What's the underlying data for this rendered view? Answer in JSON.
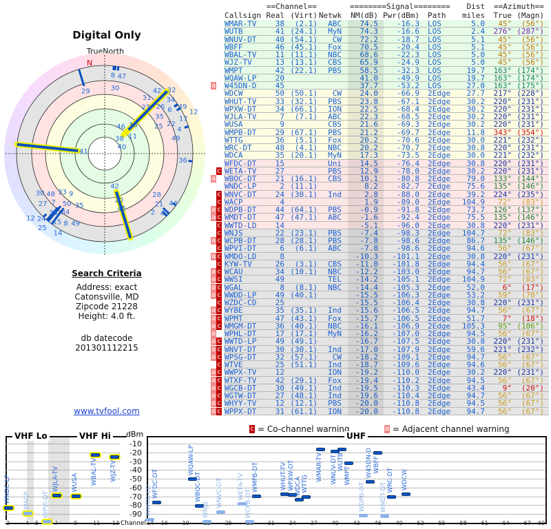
{
  "polar": {
    "title": "Digital Only",
    "north_label": "TrueNorth",
    "n_marker": "N"
  },
  "search": {
    "heading": "Search Criteria",
    "address": "Address: exact",
    "city": "Catonsville, MD",
    "zipcode": "Zipcode 21228",
    "height": "Height: 4.0 ft.",
    "db_label": "db datecode",
    "db_value": "201301112215"
  },
  "link": "www.tvfool.com",
  "table": {
    "group_channel": "==Channel==",
    "group_signal": "========Signal========",
    "group_dist": "Dist",
    "group_azimuth": "==Azimuth==",
    "columns": [
      "Callsign",
      "Real",
      "(Virt)",
      "Netwk",
      "NM(dB)",
      "Pwr(dBm)",
      "Path",
      "miles",
      "True",
      "(Magn)"
    ]
  },
  "colors": {
    "green_zone": "#e6fbe6",
    "yellow_zone": "#fdfde4",
    "pink_zone": "#fde6e6",
    "gray_zone": "#e4e4e4",
    "text": "#1a5fd0",
    "co_channel": "#c00000",
    "adjacent": "#f08a8a"
  },
  "rows": [
    {
      "call": "WMAR-TV",
      "real": "38",
      "virt": "(2.1)",
      "net": "ABC",
      "nm": "74.5",
      "pwr": "-16.3",
      "path": "LOS",
      "dist": "5.0",
      "az": "45°",
      "mag": "(56°)",
      "flags": "",
      "zone": "green"
    },
    {
      "call": "WUTB",
      "real": "41",
      "virt": "(24.1)",
      "net": "MyN",
      "nm": "74.3",
      "pwr": "-16.6",
      "path": "LOS",
      "dist": "2.4",
      "az": "276°",
      "mag": "(287°)",
      "flags": "",
      "zone": "green"
    },
    {
      "call": "WNUV-DT",
      "real": "40",
      "virt": "(54.1)",
      "net": "CW",
      "nm": "72.2",
      "pwr": "-18.7",
      "path": "LOS",
      "dist": "5.1",
      "az": "45°",
      "mag": "(56°)",
      "flags": "",
      "zone": "green"
    },
    {
      "call": "WBFF",
      "real": "46",
      "virt": "(45.1)",
      "net": "Fox",
      "nm": "70.5",
      "pwr": "-20.4",
      "path": "LOS",
      "dist": "5.1",
      "az": "45°",
      "mag": "(56°)",
      "flags": "",
      "zone": "green"
    },
    {
      "call": "WBAL-TV",
      "real": "11",
      "virt": "(11.1)",
      "net": "NBC",
      "nm": "68.6",
      "pwr": "-22.3",
      "path": "LOS",
      "dist": "5.0",
      "az": "45°",
      "mag": "(56°)",
      "flags": "",
      "zone": "green"
    },
    {
      "call": "WJZ-TV",
      "real": "13",
      "virt": "(13.1)",
      "net": "CBS",
      "nm": "65.9",
      "pwr": "-24.9",
      "path": "LOS",
      "dist": "5.0",
      "az": "45°",
      "mag": "(56°)",
      "flags": "",
      "zone": "green"
    },
    {
      "call": "WMPT",
      "real": "42",
      "virt": "(22.1)",
      "net": "PBS",
      "nm": "58.5",
      "pwr": "-32.3",
      "path": "LOS",
      "dist": "19.7",
      "az": "163°",
      "mag": "(174°)",
      "flags": "",
      "zone": "green"
    },
    {
      "call": "WQAW-LP",
      "real": "20",
      "virt": "",
      "net": "",
      "nm": "41.0",
      "pwr": "-49.9",
      "path": "LOS",
      "dist": "19.7",
      "az": "163°",
      "mag": "(174°)",
      "flags": "",
      "zone": "green"
    },
    {
      "call": "W45DN-D",
      "real": "45",
      "virt": "",
      "net": "",
      "nm": "37.7",
      "pwr": "-53.2",
      "path": "LOS",
      "dist": "27.0",
      "az": "163°",
      "mag": "(175°)",
      "flags": "a",
      "zone": "green"
    },
    {
      "call": "WDCW",
      "real": "50",
      "virt": "(50.1)",
      "net": "CW",
      "nm": "24.0",
      "pwr": "-66.9",
      "path": "2Edge",
      "dist": "27.7",
      "az": "217°",
      "mag": "(228°)",
      "flags": "",
      "zone": "yellow"
    },
    {
      "call": "WHUT-TV",
      "real": "33",
      "virt": "(32.1)",
      "net": "PBS",
      "nm": "23.8",
      "pwr": "-67.1",
      "path": "2Edge",
      "dist": "30.2",
      "az": "220°",
      "mag": "(231°)",
      "flags": "",
      "zone": "yellow"
    },
    {
      "call": "WPXW-DT",
      "real": "34",
      "virt": "(66.1)",
      "net": "ION",
      "nm": "22.5",
      "pwr": "-68.4",
      "path": "2Edge",
      "dist": "30.2",
      "az": "220°",
      "mag": "(231°)",
      "flags": "",
      "zone": "yellow"
    },
    {
      "call": "WJLA-TV",
      "real": "7",
      "virt": "(7.1)",
      "net": "ABC",
      "nm": "22.3",
      "pwr": "-68.5",
      "path": "2Edge",
      "dist": "30.2",
      "az": "220°",
      "mag": "(231°)",
      "flags": "",
      "zone": "yellow"
    },
    {
      "call": "WUSA",
      "real": "9",
      "virt": "",
      "net": "CBS",
      "nm": "21.6",
      "pwr": "-69.3",
      "path": "2Edge",
      "dist": "30.2",
      "az": "220°",
      "mag": "(231°)",
      "flags": "",
      "zone": "yellow"
    },
    {
      "call": "WMPB-DT",
      "real": "29",
      "virt": "(67.1)",
      "net": "PBS",
      "nm": "21.2",
      "pwr": "-69.7",
      "path": "2Edge",
      "dist": "11.8",
      "az": "343°",
      "mag": "(354°)",
      "flags": "",
      "zone": "yellow"
    },
    {
      "call": "WTTG",
      "real": "36",
      "virt": "(5.1)",
      "net": "Fox",
      "nm": "20.2",
      "pwr": "-70.6",
      "path": "2Edge",
      "dist": "30.0",
      "az": "221°",
      "mag": "(232°)",
      "flags": "",
      "zone": "yellow"
    },
    {
      "call": "WRC-DT",
      "real": "48",
      "virt": "(4.1)",
      "net": "NBC",
      "nm": "20.2",
      "pwr": "-70.7",
      "path": "2Edge",
      "dist": "30.8",
      "az": "220°",
      "mag": "(231°)",
      "flags": "",
      "zone": "yellow"
    },
    {
      "call": "WDCA",
      "real": "35",
      "virt": "(20.1)",
      "net": "MyN",
      "nm": "17.3",
      "pwr": "-73.5",
      "path": "2Edge",
      "dist": "30.0",
      "az": "221°",
      "mag": "(232°)",
      "flags": "",
      "zone": "yellow"
    },
    {
      "call": "WFDC-DT",
      "real": "15",
      "virt": "",
      "net": "Uni",
      "nm": "14.5",
      "pwr": "-76.4",
      "path": "2Edge",
      "dist": "30.8",
      "az": "220°",
      "mag": "(231°)",
      "flags": "",
      "zone": "pink"
    },
    {
      "call": "WETA-TV",
      "real": "27",
      "virt": "",
      "net": "PBS",
      "nm": "12.9",
      "pwr": "-78.0",
      "path": "2Edge",
      "dist": "30.2",
      "az": "220°",
      "mag": "(231°)",
      "flags": "c",
      "zone": "pink"
    },
    {
      "call": "WBOC-DT",
      "real": "21",
      "virt": "(16.1)",
      "net": "CBS",
      "nm": "10.1",
      "pwr": "-80.8",
      "path": "2Edge",
      "dist": "79.0",
      "az": "133°",
      "mag": "(144°)",
      "flags": "a",
      "zone": "pink"
    },
    {
      "call": "WNDC-LP",
      "real": "2",
      "virt": "(11.1)",
      "net": "",
      "nm": "8.2",
      "pwr": "-82.7",
      "path": "2Edge",
      "dist": "75.6",
      "az": "135°",
      "mag": "(146°)",
      "flags": "",
      "zone": "pink"
    },
    {
      "call": "WNVC-DT",
      "real": "24",
      "virt": "(30.1)",
      "net": "Ind",
      "nm": "2.8",
      "pwr": "-88.0",
      "path": "2Edge",
      "dist": "39.2",
      "az": "224°",
      "mag": "(235°)",
      "flags": "c",
      "zone": "pink"
    },
    {
      "call": "WACP",
      "real": "4",
      "virt": "",
      "net": "",
      "nm": "1.9",
      "pwr": "-89.0",
      "path": "2Edge",
      "dist": "104.9",
      "az": "72°",
      "mag": "(83°)",
      "flags": "c",
      "zone": "pink"
    },
    {
      "call": "WDPB-DT",
      "real": "44",
      "virt": "(64.1)",
      "net": "PBS",
      "nm": "-0.9",
      "pwr": "-91.8",
      "path": "2Edge",
      "dist": "73.7",
      "az": "126°",
      "mag": "(137°)",
      "flags": "ac",
      "zone": "pink"
    },
    {
      "call": "WMDT-DT",
      "real": "47",
      "virt": "(47.1)",
      "net": "ABC",
      "nm": "-1.6",
      "pwr": "-92.4",
      "path": "2Edge",
      "dist": "75.5",
      "az": "135°",
      "mag": "(146°)",
      "flags": "ac",
      "zone": "pink"
    },
    {
      "call": "WWTD-LD",
      "real": "14",
      "virt": "",
      "net": "",
      "nm": "-5.1",
      "pwr": "-96.0",
      "path": "2Edge",
      "dist": "30.8",
      "az": "220°",
      "mag": "(231°)",
      "flags": "c",
      "zone": "pink"
    },
    {
      "call": "WNJS",
      "real": "22",
      "virt": "(23.1)",
      "net": "PBS",
      "nm": "-7.4",
      "pwr": "-98.3",
      "path": "2Edge",
      "dist": "104.7",
      "az": "72°",
      "mag": "(83°)",
      "flags": "c",
      "zone": "gray"
    },
    {
      "call": "WCPB-DT",
      "real": "28",
      "virt": "(28.1)",
      "net": "PBS",
      "nm": "-7.8",
      "pwr": "-98.6",
      "path": "2Edge",
      "dist": "86.7",
      "az": "135°",
      "mag": "(146°)",
      "flags": "ac",
      "zone": "gray"
    },
    {
      "call": "WPVI-DT",
      "real": "6",
      "virt": "(6.1)",
      "net": "ABC",
      "nm": "-7.8",
      "pwr": "-98.6",
      "path": "2Edge",
      "dist": "94.6",
      "az": "56°",
      "mag": "(67°)",
      "flags": "c",
      "zone": "gray"
    },
    {
      "call": "WMDO-LD",
      "real": "8",
      "virt": "",
      "net": "",
      "nm": "-10.3",
      "pwr": "-101.1",
      "path": "2Edge",
      "dist": "30.8",
      "az": "220°",
      "mag": "(231°)",
      "flags": "ac",
      "zone": "gray"
    },
    {
      "call": "KYW-TV",
      "real": "26",
      "virt": "(3.1)",
      "net": "CBS",
      "nm": "-11.0",
      "pwr": "-101.8",
      "path": "2Edge",
      "dist": "94.4",
      "az": "56°",
      "mag": "(67°)",
      "flags": "c",
      "zone": "gray"
    },
    {
      "call": "WCAU",
      "real": "34",
      "virt": "(10.1)",
      "net": "NBC",
      "nm": "-12.2",
      "pwr": "-103.0",
      "path": "2Edge",
      "dist": "94.7",
      "az": "56°",
      "mag": "(67°)",
      "flags": "ac",
      "zone": "gray"
    },
    {
      "call": "WWSI",
      "real": "49",
      "virt": "",
      "net": "TEL",
      "nm": "-14.2",
      "pwr": "-105.1",
      "path": "2Edge",
      "dist": "104.9",
      "az": "72°",
      "mag": "(83°)",
      "flags": "ac",
      "zone": "gray"
    },
    {
      "call": "WGAL",
      "real": "8",
      "virt": "(8.1)",
      "net": "NBC",
      "nm": "-14.4",
      "pwr": "-105.3",
      "path": "2Edge",
      "dist": "52.0",
      "az": "6°",
      "mag": "(17°)",
      "flags": "ac",
      "zone": "gray"
    },
    {
      "call": "WWDD-LP",
      "real": "49",
      "virt": "(40.1)",
      "net": "",
      "nm": "-15.5",
      "pwr": "-106.3",
      "path": "2Edge",
      "dist": "53.2",
      "az": "59°",
      "mag": "(70°)",
      "flags": "ac",
      "zone": "gray"
    },
    {
      "call": "WZDC-CD",
      "real": "25",
      "virt": "",
      "net": "",
      "nm": "-15.5",
      "pwr": "-106.4",
      "path": "2Edge",
      "dist": "30.8",
      "az": "220°",
      "mag": "(231°)",
      "flags": "c",
      "zone": "gray"
    },
    {
      "call": "WYBE",
      "real": "35",
      "virt": "(35.1)",
      "net": "Ind",
      "nm": "-15.6",
      "pwr": "-106.5",
      "path": "2Edge",
      "dist": "94.7",
      "az": "56°",
      "mag": "(67°)",
      "flags": "ac",
      "zone": "gray"
    },
    {
      "call": "WPMT",
      "real": "47",
      "virt": "(43.1)",
      "net": "Fox",
      "nm": "-15.7",
      "pwr": "-106.5",
      "path": "2Edge",
      "dist": "51.7",
      "az": "7°",
      "mag": "(18°)",
      "flags": "ac",
      "zone": "gray"
    },
    {
      "call": "WMGM-DT",
      "real": "36",
      "virt": "(40.1)",
      "net": "NBC",
      "nm": "-16.1",
      "pwr": "-106.9",
      "path": "2Edge",
      "dist": "105.3",
      "az": "95°",
      "mag": "(106°)",
      "flags": "ac",
      "zone": "gray"
    },
    {
      "call": "WPHL-DT",
      "real": "17",
      "virt": "(17.1)",
      "net": "MyN",
      "nm": "-16.2",
      "pwr": "-107.0",
      "path": "2Edge",
      "dist": "94.5",
      "az": "56°",
      "mag": "(67°)",
      "flags": "a",
      "zone": "gray"
    },
    {
      "call": "WWTD-LP",
      "real": "49",
      "virt": "(49.1)",
      "net": "",
      "nm": "-16.7",
      "pwr": "-107.5",
      "path": "2Edge",
      "dist": "30.8",
      "az": "220°",
      "mag": "(231°)",
      "flags": "ac",
      "zone": "gray"
    },
    {
      "call": "WNVT-DT",
      "real": "30",
      "virt": "(30.1)",
      "net": "Ind",
      "nm": "-17.0",
      "pwr": "-107.9",
      "path": "2Edge",
      "dist": "59.6",
      "az": "221°",
      "mag": "(232°)",
      "flags": "ac",
      "zone": "gray"
    },
    {
      "call": "WPSG-DT",
      "real": "32",
      "virt": "(57.1)",
      "net": "CW",
      "nm": "-18.2",
      "pwr": "-109.1",
      "path": "2Edge",
      "dist": "94.7",
      "az": "56°",
      "mag": "(67°)",
      "flags": "ac",
      "zone": "gray"
    },
    {
      "call": "WTVE",
      "real": "25",
      "virt": "(51.1)",
      "net": "Ind",
      "nm": "-18.7",
      "pwr": "-109.6",
      "path": "2Edge",
      "dist": "94.6",
      "az": "56°",
      "mag": "(67°)",
      "flags": "c",
      "zone": "gray"
    },
    {
      "call": "WWPX-TV",
      "real": "12",
      "virt": "",
      "net": "ION",
      "nm": "-19.2",
      "pwr": "-110.0",
      "path": "2Edge",
      "dist": "30.2",
      "az": "220°",
      "mag": "(231°)",
      "flags": "ac",
      "zone": "gray"
    },
    {
      "call": "WTXF-TV",
      "real": "42",
      "virt": "(29.1)",
      "net": "Fox",
      "nm": "-19.4",
      "pwr": "-110.2",
      "path": "2Edge",
      "dist": "94.5",
      "az": "56°",
      "mag": "(67°)",
      "flags": "ac",
      "zone": "gray"
    },
    {
      "call": "WGCB-DT",
      "real": "30",
      "virt": "(49.1)",
      "net": "Ind",
      "nm": "-19.5",
      "pwr": "-110.3",
      "path": "2Edge",
      "dist": "43.4",
      "az": "9°",
      "mag": "(20°)",
      "flags": "ac",
      "zone": "gray"
    },
    {
      "call": "WGTW-DT",
      "real": "27",
      "virt": "(48.1)",
      "net": "Ind",
      "nm": "-19.6",
      "pwr": "-110.4",
      "path": "2Edge",
      "dist": "94.7",
      "az": "56°",
      "mag": "(67°)",
      "flags": "ac",
      "zone": "gray"
    },
    {
      "call": "WHYY-TV",
      "real": "12",
      "virt": "(12.1)",
      "net": "PBS",
      "nm": "-20.0",
      "pwr": "-110.8",
      "path": "2Edge",
      "dist": "94.5",
      "az": "56°",
      "mag": "(67°)",
      "flags": "ac",
      "zone": "gray"
    },
    {
      "call": "WPPX-DT",
      "real": "31",
      "virt": "(61.1)",
      "net": "ION",
      "nm": "-20.0",
      "pwr": "-110.8",
      "path": "2Edge",
      "dist": "94.7",
      "az": "56°",
      "mag": "(67°)",
      "flags": "ac",
      "zone": "gray"
    }
  ],
  "legend": {
    "co_flag": "c",
    "co_text": "= Co-channel warning",
    "adj_flag": "a",
    "adj_text": "= Adjacent channel warning"
  },
  "spectrum": {
    "vhf_lo": "VHF Lo",
    "vhf_hi": "VHF Hi",
    "uhf": "UHF",
    "unit": "dBm",
    "channel_label": "Channel",
    "dbm_ticks": [
      "-10",
      "-20",
      "-30",
      "-40",
      "-50",
      "-60",
      "-70",
      "-80",
      "-90"
    ],
    "vhf_ticks": [
      "2",
      "4",
      "5",
      "7",
      "9",
      "11",
      "13"
    ],
    "uhf_ticks": [
      "14",
      "16",
      "19",
      "22",
      "25",
      "28",
      "31",
      "34",
      "37",
      "40",
      "43",
      "46",
      "49",
      "52",
      "55",
      "58",
      "61",
      "64",
      "67",
      "69"
    ]
  }
}
